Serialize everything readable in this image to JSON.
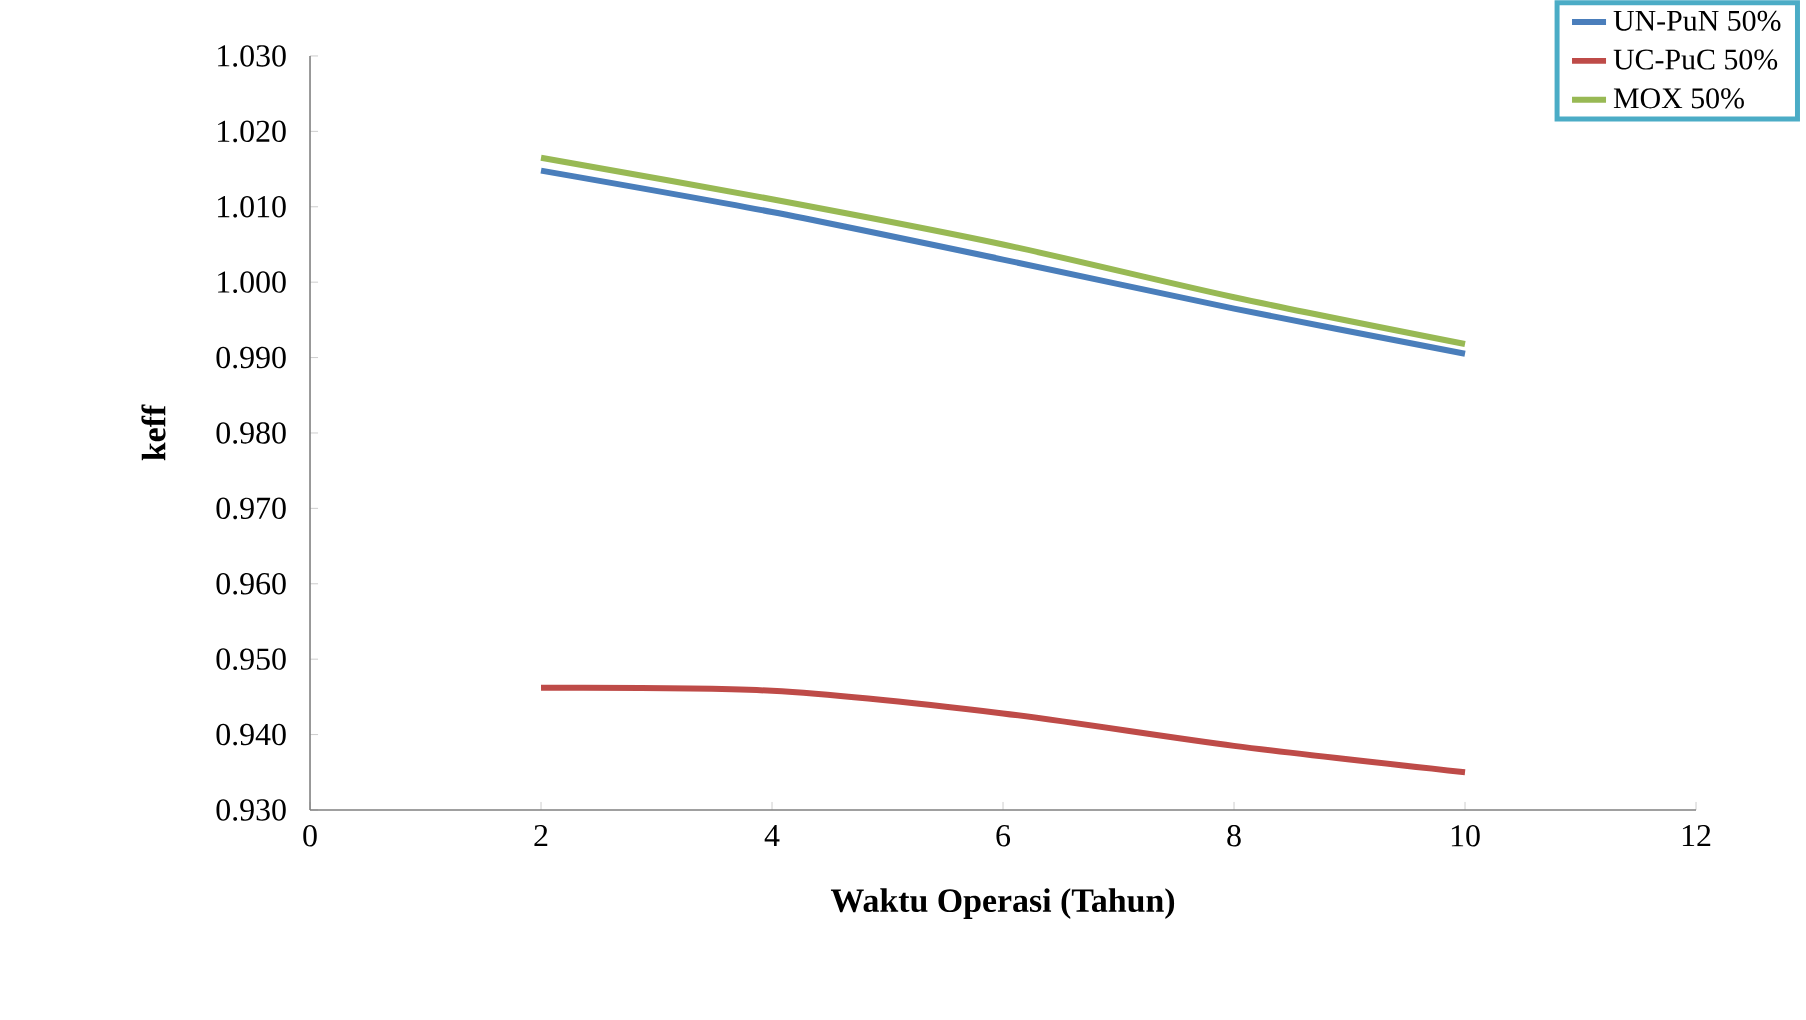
{
  "chart_data": {
    "type": "line",
    "xlabel": "Waktu Operasi (Tahun)",
    "ylabel": "keff",
    "x": [
      2,
      4,
      6,
      8,
      10
    ],
    "series": [
      {
        "name": "UN-PuN 50%",
        "color": "#4a7ebb",
        "values": [
          1.0148,
          1.0093,
          1.003,
          0.9965,
          0.9905
        ]
      },
      {
        "name": "UC-PuC 50%",
        "color": "#be4b48",
        "values": [
          0.9462,
          0.9458,
          0.9428,
          0.9385,
          0.935
        ]
      },
      {
        "name": "MOX 50%",
        "color": "#98b954",
        "values": [
          1.0165,
          1.011,
          1.005,
          0.998,
          0.9918
        ]
      }
    ],
    "xlim": [
      0,
      12
    ],
    "xticks": [
      0,
      2,
      4,
      6,
      8,
      10,
      12
    ],
    "ylim": [
      0.93,
      1.03
    ],
    "yticks": [
      {
        "value": 0.93,
        "label": "0.930"
      },
      {
        "value": 0.94,
        "label": "0.940"
      },
      {
        "value": 0.95,
        "label": "0.950"
      },
      {
        "value": 0.96,
        "label": "0.960"
      },
      {
        "value": 0.97,
        "label": "0.970"
      },
      {
        "value": 0.98,
        "label": "0.980"
      },
      {
        "value": 0.99,
        "label": "0.990"
      },
      {
        "value": 1.0,
        "label": "1.000"
      },
      {
        "value": 1.01,
        "label": "1.010"
      },
      {
        "value": 1.02,
        "label": "1.020"
      },
      {
        "value": 1.03,
        "label": "1.030"
      }
    ],
    "legend": "top right",
    "grid": false,
    "marker": "none",
    "line_style": "solid"
  }
}
